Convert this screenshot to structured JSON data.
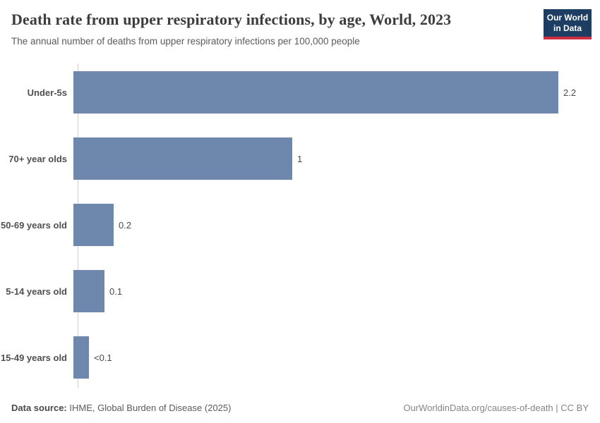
{
  "header": {
    "title": "Death rate from upper respiratory infections, by age, World, 2023",
    "subtitle": "The annual number of deaths from upper respiratory infections per 100,000 people"
  },
  "logo": {
    "line1": "Our World",
    "line2": "in Data",
    "bg_color": "#1d3d63",
    "accent_color": "#cf2d41"
  },
  "chart_data": {
    "type": "bar",
    "orientation": "horizontal",
    "title": "Death rate from upper respiratory infections, by age, World, 2023",
    "xlabel": "",
    "ylabel": "",
    "categories": [
      "Under-5s",
      "70+ year olds",
      "50-69 years old",
      "5-14 years old",
      "15-49 years old"
    ],
    "values": [
      2.2,
      1,
      0.2,
      0.1,
      0.07
    ],
    "value_labels": [
      "2.2",
      "1",
      "0.2",
      "0.1",
      "<0.1"
    ],
    "bar_fractions": [
      1,
      0.451,
      0.083,
      0.064,
      0.032
    ],
    "xlim": [
      0,
      2.2
    ],
    "grid": false,
    "legend": "none",
    "bar_color": "#6e87ad"
  },
  "footer": {
    "source_label": "Data source:",
    "source_text": "IHME, Global Burden of Disease (2025)",
    "attribution": "OurWorldinData.org/causes-of-death | CC BY"
  }
}
